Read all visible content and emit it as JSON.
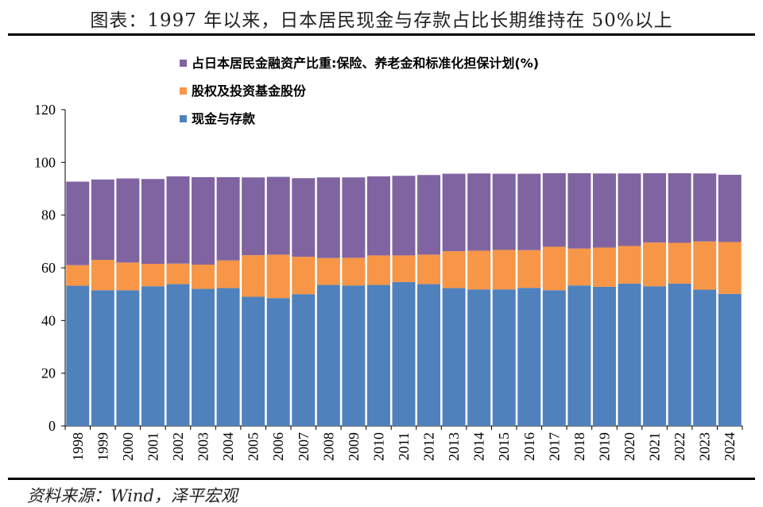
{
  "title": "图表：1997 年以来，日本居民现金与存款占比长期维持在 50%以上",
  "source": "资料来源：Wind，泽平宏观",
  "chart_data": {
    "type": "bar",
    "stacked": true,
    "categories": [
      "1998",
      "1999",
      "2000",
      "2001",
      "2002",
      "2003",
      "2004",
      "2005",
      "2006",
      "2007",
      "2008",
      "2009",
      "2010",
      "2011",
      "2012",
      "2013",
      "2014",
      "2015",
      "2016",
      "2017",
      "2018",
      "2019",
      "2020",
      "2021",
      "2022",
      "2023",
      "2024"
    ],
    "series": [
      {
        "name": "现金与存款",
        "color": "#4f81bd",
        "values": [
          53.2,
          51.5,
          51.5,
          53,
          53.8,
          52,
          52.3,
          49,
          48.5,
          50,
          53.5,
          53.3,
          53.5,
          54.6,
          53.8,
          52.3,
          51.8,
          51.8,
          52.4,
          51.5,
          53.3,
          52.8,
          54,
          53,
          54,
          51.7,
          50.1
        ]
      },
      {
        "name": "股权及投资基金股份",
        "color": "#f79646",
        "values": [
          7.8,
          11.5,
          10.5,
          8.5,
          7.8,
          9.2,
          10.5,
          15.8,
          16.5,
          14.2,
          10.2,
          10.5,
          11.2,
          10.1,
          11.2,
          14,
          14.7,
          15,
          14.3,
          16.5,
          14,
          14.9,
          14.3,
          16.6,
          15.5,
          18.3,
          19.7
        ]
      },
      {
        "name": "占日本居民金融资产比重:保险、养老金和标准化担保计划(%)",
        "color": "#8064a2",
        "values": [
          31.7,
          30.5,
          31.9,
          32.2,
          33.1,
          33.2,
          31.6,
          29.5,
          29.5,
          29.8,
          30.6,
          30.5,
          30,
          30.2,
          30.2,
          29.4,
          29.3,
          28.9,
          29,
          27.9,
          28.6,
          28.1,
          27.5,
          26.3,
          26.4,
          25.8,
          25.5
        ]
      }
    ],
    "legend": [
      "占日本居民金融资产比重:保险、养老金和标准化担保计划(%)",
      "股权及投资基金股份",
      "现金与存款"
    ],
    "ylim": [
      0,
      120
    ],
    "yticks": [
      0,
      20,
      40,
      60,
      80,
      100,
      120
    ],
    "xlabel": "",
    "ylabel": "",
    "grid": false
  }
}
